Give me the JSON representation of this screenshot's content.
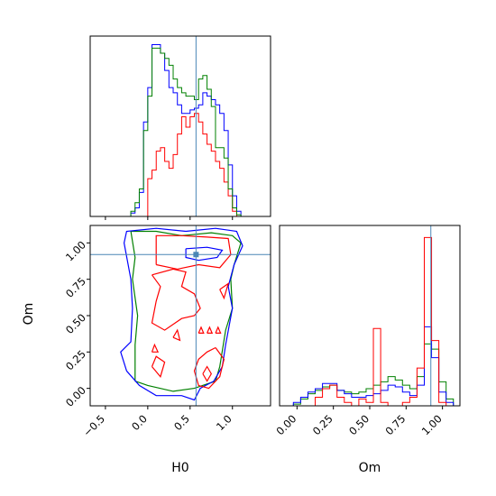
{
  "chart_data": {
    "type": "corner",
    "parameters": [
      "H0",
      "Om"
    ],
    "truth": {
      "H0": 0.57,
      "Om": 0.92
    },
    "truth_color": "#4a86b6",
    "series_colors": {
      "blue": "#0000ff",
      "green": "#008000",
      "red": "#ff0000"
    },
    "axes": {
      "H0": {
        "range": [
          -0.68,
          1.45
        ],
        "ticks": [
          -0.5,
          0.0,
          0.5,
          1.0
        ],
        "tick_labels": [
          "−0.5",
          "0.0",
          "0.5",
          "1.0"
        ]
      },
      "Om": {
        "range": [
          -0.12,
          1.12
        ],
        "ticks": [
          0.0,
          0.25,
          0.5,
          0.75,
          1.0
        ],
        "tick_labels": [
          "0.00",
          "0.25",
          "0.50",
          "0.75",
          "1.00"
        ]
      }
    },
    "xlabel_left": "H0",
    "xlabel_right": "Om",
    "ylabel": "Om",
    "hist_H0": {
      "edges": [
        -0.2,
        -0.15,
        -0.1,
        -0.05,
        0.0,
        0.05,
        0.1,
        0.15,
        0.2,
        0.25,
        0.3,
        0.35,
        0.4,
        0.45,
        0.5,
        0.55,
        0.6,
        0.65,
        0.7,
        0.75,
        0.8,
        0.85,
        0.9,
        0.95,
        1.0,
        1.05,
        1.1
      ],
      "max": 100,
      "blue": [
        2,
        5,
        14,
        55,
        75,
        100,
        100,
        95,
        85,
        75,
        72,
        65,
        60,
        60,
        62,
        63,
        65,
        72,
        70,
        68,
        65,
        60,
        50,
        30,
        12,
        3
      ],
      "green": [
        3,
        8,
        16,
        50,
        70,
        98,
        98,
        95,
        92,
        88,
        80,
        75,
        72,
        70,
        70,
        68,
        80,
        82,
        74,
        64,
        40,
        40,
        34,
        16,
        5,
        1
      ],
      "red": [
        0,
        0,
        0,
        0,
        22,
        27,
        38,
        40,
        32,
        28,
        36,
        48,
        58,
        52,
        58,
        60,
        55,
        48,
        42,
        38,
        32,
        28,
        20,
        12,
        3,
        0
      ]
    },
    "hist_Om": {
      "edges": [
        -0.075,
        -0.025,
        0.025,
        0.075,
        0.125,
        0.175,
        0.225,
        0.275,
        0.325,
        0.375,
        0.425,
        0.475,
        0.525,
        0.575,
        0.625,
        0.675,
        0.725,
        0.775,
        0.825,
        0.875,
        0.925,
        0.975,
        1.025,
        1.075
      ],
      "max": 100,
      "blue": [
        0,
        2,
        5,
        8,
        10,
        13,
        13,
        9,
        7,
        5,
        5,
        6,
        7,
        9,
        12,
        11,
        8,
        6,
        12,
        46,
        28,
        8,
        2
      ],
      "green": [
        0,
        1,
        4,
        7,
        9,
        11,
        12,
        9,
        8,
        7,
        8,
        10,
        12,
        14,
        17,
        15,
        12,
        10,
        17,
        36,
        33,
        14,
        4
      ],
      "red": [
        0,
        0,
        0,
        0,
        5,
        10,
        12,
        5,
        2,
        0,
        4,
        2,
        45,
        2,
        0,
        0,
        2,
        5,
        22,
        98,
        38,
        2,
        0
      ]
    },
    "contours": {
      "blue": [
        [
          [
            -0.25,
            0.12
          ],
          [
            -0.32,
            0.25
          ],
          [
            -0.2,
            0.32
          ],
          [
            -0.18,
            0.55
          ],
          [
            -0.2,
            0.75
          ],
          [
            -0.28,
            1.0
          ],
          [
            -0.25,
            1.08
          ],
          [
            0.1,
            1.1
          ],
          [
            0.45,
            1.08
          ],
          [
            0.8,
            1.1
          ],
          [
            1.05,
            1.08
          ],
          [
            1.12,
            0.98
          ],
          [
            1.02,
            0.85
          ],
          [
            0.95,
            0.7
          ],
          [
            1.0,
            0.55
          ],
          [
            0.92,
            0.3
          ],
          [
            0.88,
            0.15
          ],
          [
            0.78,
            0.05
          ],
          [
            0.62,
            0.0
          ],
          [
            0.55,
            -0.08
          ],
          [
            0.4,
            -0.05
          ],
          [
            0.1,
            -0.05
          ],
          [
            -0.1,
            0.02
          ],
          [
            -0.25,
            0.12
          ]
        ],
        [
          [
            0.45,
            0.96
          ],
          [
            0.7,
            0.97
          ],
          [
            0.88,
            0.95
          ],
          [
            0.82,
            0.9
          ],
          [
            0.6,
            0.88
          ],
          [
            0.45,
            0.9
          ],
          [
            0.45,
            0.96
          ]
        ]
      ],
      "green": [
        [
          [
            -0.15,
            0.05
          ],
          [
            -0.15,
            0.3
          ],
          [
            -0.12,
            0.5
          ],
          [
            -0.18,
            0.75
          ],
          [
            -0.15,
            0.9
          ],
          [
            -0.2,
            1.08
          ],
          [
            0.1,
            1.08
          ],
          [
            0.4,
            1.05
          ],
          [
            0.75,
            1.07
          ],
          [
            1.0,
            1.05
          ],
          [
            1.1,
            1.0
          ],
          [
            1.02,
            0.85
          ],
          [
            0.98,
            0.75
          ],
          [
            1.0,
            0.55
          ],
          [
            0.92,
            0.4
          ],
          [
            0.85,
            0.15
          ],
          [
            0.8,
            0.05
          ],
          [
            0.55,
            0.0
          ],
          [
            0.3,
            -0.02
          ],
          [
            0.0,
            0.02
          ],
          [
            -0.15,
            0.05
          ]
        ]
      ],
      "red": [
        [
          [
            0.1,
            0.85
          ],
          [
            0.1,
            1.05
          ],
          [
            0.4,
            1.05
          ],
          [
            0.7,
            1.04
          ],
          [
            0.95,
            1.03
          ],
          [
            0.98,
            0.92
          ],
          [
            0.85,
            0.83
          ],
          [
            0.6,
            0.85
          ],
          [
            0.35,
            0.82
          ],
          [
            0.1,
            0.85
          ]
        ],
        [
          [
            0.05,
            0.78
          ],
          [
            0.15,
            0.7
          ],
          [
            0.1,
            0.6
          ],
          [
            0.05,
            0.45
          ],
          [
            0.2,
            0.4
          ],
          [
            0.4,
            0.48
          ],
          [
            0.55,
            0.5
          ],
          [
            0.62,
            0.55
          ],
          [
            0.55,
            0.65
          ],
          [
            0.4,
            0.7
          ],
          [
            0.45,
            0.8
          ],
          [
            0.3,
            0.82
          ],
          [
            0.05,
            0.78
          ]
        ],
        [
          [
            0.8,
            0.28
          ],
          [
            0.9,
            0.2
          ],
          [
            0.85,
            0.08
          ],
          [
            0.72,
            0.0
          ],
          [
            0.6,
            0.02
          ],
          [
            0.55,
            0.12
          ],
          [
            0.6,
            0.2
          ],
          [
            0.7,
            0.25
          ],
          [
            0.8,
            0.28
          ]
        ],
        [
          [
            0.05,
            0.15
          ],
          [
            0.1,
            0.22
          ],
          [
            0.2,
            0.18
          ],
          [
            0.15,
            0.08
          ],
          [
            0.05,
            0.15
          ]
        ],
        [
          [
            0.3,
            0.35
          ],
          [
            0.35,
            0.4
          ],
          [
            0.38,
            0.33
          ],
          [
            0.3,
            0.35
          ]
        ],
        [
          [
            0.05,
            0.25
          ],
          [
            0.08,
            0.3
          ],
          [
            0.12,
            0.25
          ],
          [
            0.05,
            0.25
          ]
        ],
        [
          [
            0.6,
            0.38
          ],
          [
            0.63,
            0.42
          ],
          [
            0.66,
            0.38
          ],
          [
            0.6,
            0.38
          ]
        ],
        [
          [
            0.7,
            0.38
          ],
          [
            0.73,
            0.42
          ],
          [
            0.76,
            0.38
          ],
          [
            0.7,
            0.38
          ]
        ],
        [
          [
            0.8,
            0.38
          ],
          [
            0.83,
            0.42
          ],
          [
            0.86,
            0.38
          ],
          [
            0.8,
            0.38
          ]
        ],
        [
          [
            0.65,
            0.1
          ],
          [
            0.7,
            0.15
          ],
          [
            0.75,
            0.1
          ],
          [
            0.7,
            0.05
          ],
          [
            0.65,
            0.1
          ]
        ],
        [
          [
            0.85,
            0.68
          ],
          [
            0.95,
            0.72
          ],
          [
            0.9,
            0.62
          ],
          [
            0.85,
            0.68
          ]
        ]
      ]
    }
  }
}
